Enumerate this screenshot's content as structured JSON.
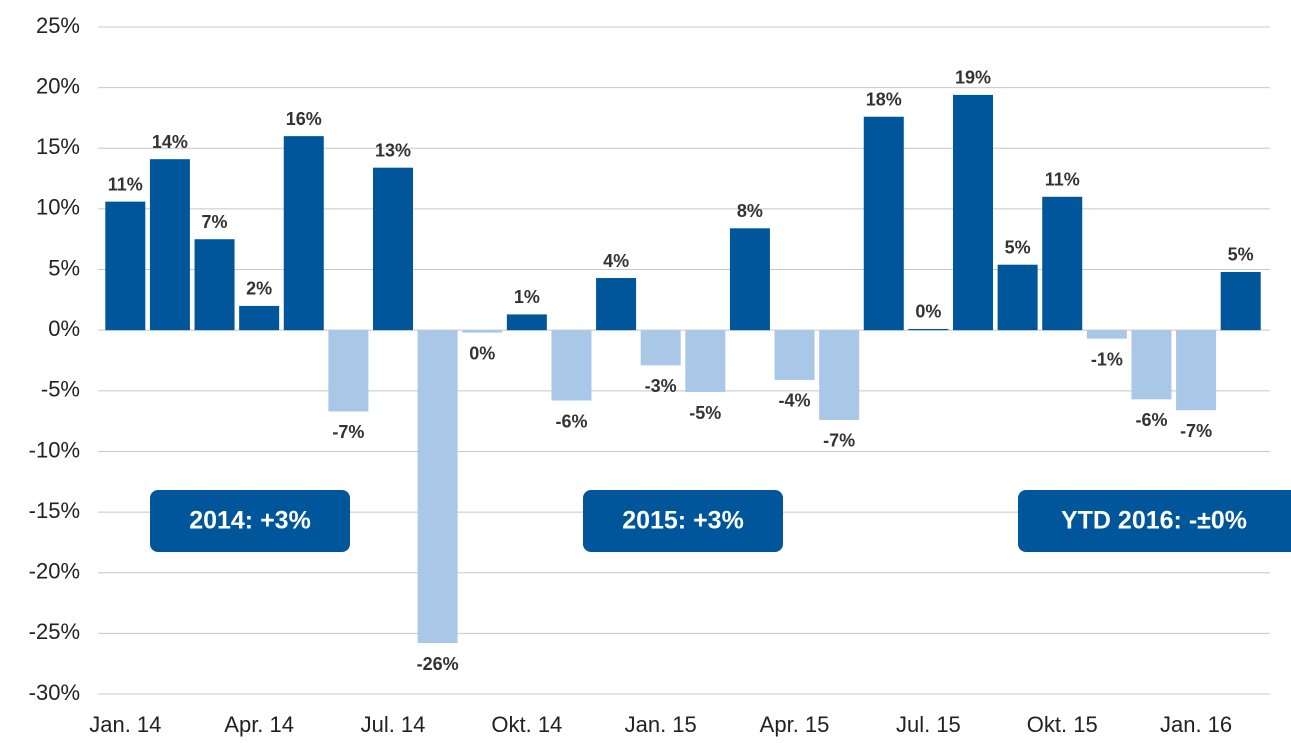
{
  "chart_data": {
    "type": "bar",
    "categories": [
      "Jan. 14",
      null,
      null,
      "Apr. 14",
      null,
      null,
      "Jul. 14",
      null,
      null,
      "Okt. 14",
      null,
      null,
      "Jan. 15",
      null,
      null,
      "Apr. 15",
      null,
      null,
      "Jul. 15",
      null,
      null,
      "Okt. 15",
      null,
      null,
      "Jan. 16",
      null
    ],
    "values": [
      10.6,
      14.1,
      7.5,
      2.0,
      16.0,
      -6.7,
      13.4,
      -25.8,
      -0.2,
      1.3,
      -5.8,
      4.3,
      -2.9,
      -5.1,
      8.4,
      -4.1,
      -7.4,
      17.6,
      0.1,
      19.4,
      5.4,
      11.0,
      -0.7,
      -5.7,
      -6.6,
      4.8
    ],
    "value_labels": [
      "11%",
      "14%",
      "7%",
      "2%",
      "16%",
      "-7%",
      "13%",
      "-26%",
      "0%",
      "1%",
      "-6%",
      "4%",
      "-3%",
      "-5%",
      "8%",
      "-4%",
      "-7%",
      "18%",
      "0%",
      "19%",
      "5%",
      "11%",
      "-1%",
      "-6%",
      "-7%",
      "5%"
    ],
    "color_positive": "#00569a",
    "color_negative": "#a9c7e7",
    "ylim": [
      -30,
      25
    ],
    "yticks": [
      {
        "value": -30,
        "label": "-30%"
      },
      {
        "value": -25,
        "label": "-25%"
      },
      {
        "value": -20,
        "label": "-20%"
      },
      {
        "value": -15,
        "label": "-15%"
      },
      {
        "value": -10,
        "label": "-10%"
      },
      {
        "value": -5,
        "label": "-5%"
      },
      {
        "value": 0,
        "label": "0%"
      },
      {
        "value": 5,
        "label": "5%"
      },
      {
        "value": 10,
        "label": "10%"
      },
      {
        "value": 15,
        "label": "15%"
      },
      {
        "value": 20,
        "label": "20%"
      },
      {
        "value": 25,
        "label": "25%"
      }
    ],
    "grid": true,
    "annotations": [
      "2014: +3%",
      "2015: +3%",
      "YTD 2016: -±0%"
    ]
  }
}
